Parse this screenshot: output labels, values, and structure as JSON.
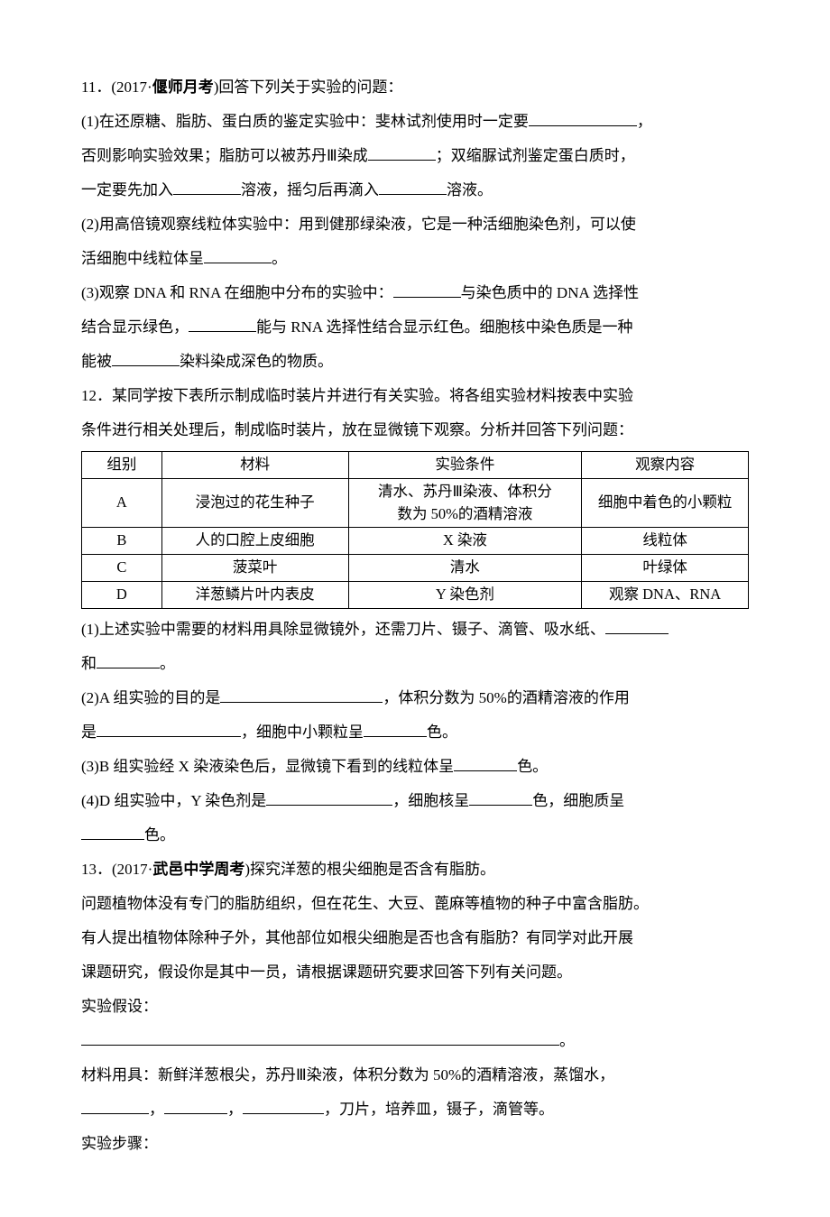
{
  "q11": {
    "head_num": "11．",
    "head_src": "(2017·",
    "head_bold": "偃师月考",
    "head_tail": ")回答下列关于实验的问题：",
    "p1a": "(1)在还原糖、脂肪、蛋白质的鉴定实验中：斐林试剂使用时一定要",
    "p1b": "，",
    "p2a": "否则影响实验效果；脂肪可以被苏丹Ⅲ染成",
    "p2b": "；双缩脲试剂鉴定蛋白质时，",
    "p3a": "一定要先加入",
    "p3b": "溶液，摇匀后再滴入",
    "p3c": "溶液。",
    "p4a": "(2)用高倍镜观察线粒体实验中：用到健那绿染液，它是一种活细胞染色剂，可以使",
    "p5a": "活细胞中线粒体呈",
    "p5b": "。",
    "p6a": "(3)观察 DNA 和 RNA 在细胞中分布的实验中：",
    "p6b": "与染色质中的 DNA 选择性",
    "p7a": "结合显示绿色，",
    "p7b": "能与 RNA 选择性结合显示红色。细胞核中染色质是一种",
    "p8a": "能被",
    "p8b": "染料染成深色的物质。"
  },
  "q12": {
    "head": "12．某同学按下表所示制成临时装片并进行有关实验。将各组实验材料按表中实验",
    "head2": "条件进行相关处理后，制成临时装片，放在显微镜下观察。分析并回答下列问题：",
    "table": {
      "headers": [
        "组别",
        "材料",
        "实验条件",
        "观察内容"
      ],
      "col_widths": [
        "12%",
        "28%",
        "35%",
        "25%"
      ],
      "rows": [
        [
          "A",
          "浸泡过的花生种子",
          "清水、苏丹Ⅲ染液、体积分<br>数为 50%的酒精溶液",
          "细胞中着色的小颗粒"
        ],
        [
          "B",
          "人的口腔上皮细胞",
          "X 染液",
          "线粒体"
        ],
        [
          "C",
          "菠菜叶",
          "清水",
          "叶绿体"
        ],
        [
          "D",
          "洋葱鳞片叶内表皮",
          "Y 染色剂",
          "观察 DNA、RNA"
        ]
      ]
    },
    "p1a": "(1)上述实验中需要的材料用具除显微镜外，还需刀片、镊子、滴管、吸水纸、",
    "p2a": "和",
    "p2b": "。",
    "p3a": "(2)A 组实验的目的是",
    "p3b": "，体积分数为 50%的酒精溶液的作用",
    "p4a": "是",
    "p4b": "，细胞中小颗粒呈",
    "p4c": "色。",
    "p5a": "(3)B 组实验经 X 染液染色后，显微镜下看到的线粒体呈",
    "p5b": "色。",
    "p6a": "(4)D 组实验中，Y 染色剂是",
    "p6b": "，细胞核呈",
    "p6c": "色，细胞质呈",
    "p7a": "",
    "p7b": "色。"
  },
  "q13": {
    "head_num": "13．",
    "head_src": "(2017·",
    "head_bold": "武邑中学周考",
    "head_tail": ")探究洋葱的根尖细胞是否含有脂肪。",
    "p1": "问题植物体没有专门的脂肪组织，但在花生、大豆、蓖麻等植物的种子中富含脂肪。",
    "p2": "有人提出植物体除种子外，其他部位如根尖细胞是否也含有脂肪？有同学对此开展",
    "p3": "课题研究，假设你是其中一员，请根据课题研究要求回答下列有关问题。",
    "assume_label": "实验假设：",
    "assume_tail": "。",
    "mat_a": "材料用具：新鲜洋葱根尖，苏丹Ⅲ染液，体积分数为 50%的酒精溶液，蒸馏水，",
    "mat_b1": "，",
    "mat_b2": "，",
    "mat_b3": "，刀片，培养皿，镊子，滴管等。",
    "steps_label": "实验步骤："
  },
  "blanks": {
    "w60": 60,
    "w70": 70,
    "w75": 75,
    "w80": 80,
    "w90": 90,
    "w120": 120,
    "w140": 140,
    "w160": 160,
    "w180": 180,
    "w530": 530
  }
}
